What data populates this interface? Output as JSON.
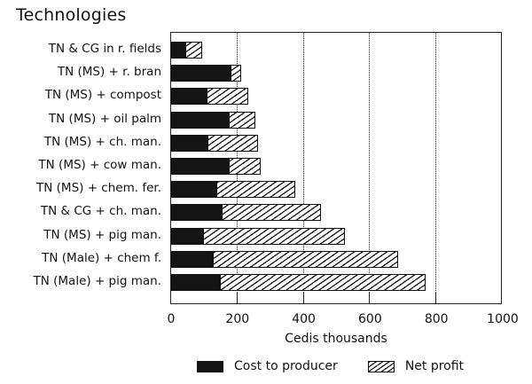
{
  "chart_data": {
    "type": "bar",
    "orientation": "horizontal",
    "stacked": true,
    "title": "",
    "ylabel": "Technologies",
    "xlabel": "Cedis thousands",
    "xlim": [
      0,
      1000
    ],
    "xticks": [
      0,
      200,
      400,
      600,
      800,
      1000
    ],
    "grid": "vertical dotted at 200, 400, 600, 800",
    "legend_position": "bottom",
    "categories": [
      "TN & CG in r. fields",
      "TN (MS) + r. bran",
      "TN (MS) + compost",
      "TN (MS) + oil palm",
      "TN (MS) + ch. man.",
      "TN (MS) + cow man.",
      "TN (MS) + chem. fer.",
      "TN & CG + ch. man.",
      "TN (MS) + pig man.",
      "TN (Male) + chem f.",
      "TN (Male) + pig man."
    ],
    "series": [
      {
        "name": "Cost to producer",
        "pattern": "solid-dark",
        "values": [
          43,
          180,
          107,
          174,
          110,
          174,
          137,
          153,
          95,
          126,
          147
        ]
      },
      {
        "name": "Net profit",
        "pattern": "diagonal-hatch",
        "values": [
          51,
          32,
          126,
          81,
          153,
          97,
          238,
          300,
          430,
          558,
          620
        ]
      }
    ]
  },
  "labels": {
    "ytitle": "Technologies",
    "xlabel": "Cedis thousands",
    "xticks": [
      "0",
      "200",
      "400",
      "600",
      "800",
      "1000"
    ],
    "legend": [
      "Cost to producer",
      "Net profit"
    ]
  }
}
